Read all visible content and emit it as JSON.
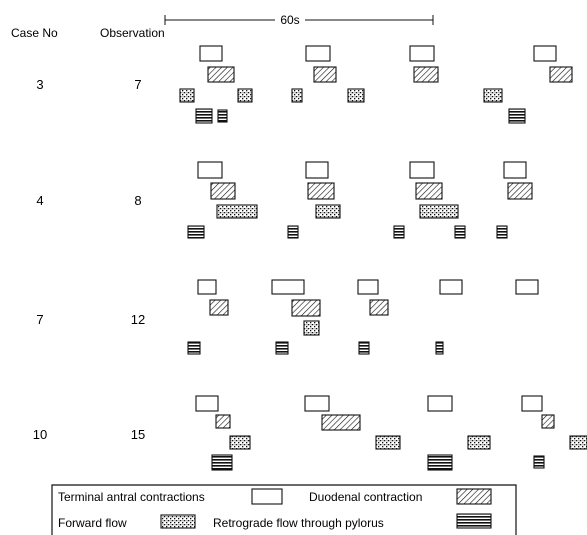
{
  "headers": {
    "case": "Case No",
    "observation": "Observation",
    "scale": "60s"
  },
  "rows": [
    {
      "case": "3",
      "observation": "7"
    },
    {
      "case": "4",
      "observation": "8"
    },
    {
      "case": "7",
      "observation": "12"
    },
    {
      "case": "10",
      "observation": "15"
    }
  ],
  "legend": {
    "terminal_antral": "Terminal antral contractions",
    "duodenal": "Duodenal contraction",
    "forward_flow": "Forward flow",
    "retrograde_flow": "Retrograde flow through pylorus"
  },
  "colors": {
    "ink": "#111111",
    "background": "#ffffff"
  }
}
